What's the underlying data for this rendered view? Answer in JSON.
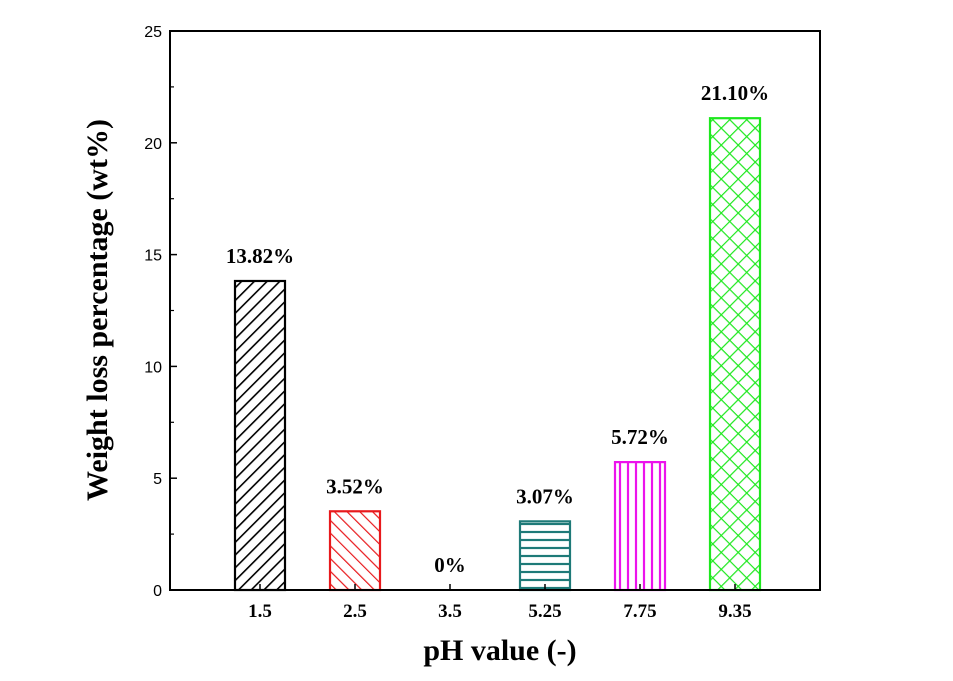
{
  "chart_data": {
    "type": "bar",
    "title": "",
    "xlabel": "pH value (-)",
    "ylabel": "Weight loss percentage (wt%)",
    "categories": [
      "1.5",
      "2.5",
      "3.5",
      "5.25",
      "7.75",
      "9.35"
    ],
    "values": [
      13.82,
      3.52,
      0,
      3.07,
      5.72,
      21.1
    ],
    "data_labels": [
      "13.82%",
      "3.52%",
      "0%",
      "3.07%",
      "5.72%",
      "21.10%"
    ],
    "colors": [
      "#000000",
      "#e8191c",
      "#1e7a78",
      "#1e7a78",
      "#ec14ec",
      "#1ee81e"
    ],
    "patterns": [
      "diag-right",
      "diag-left",
      "none",
      "horizontal",
      "vertical",
      "crosshatch"
    ],
    "ylim": [
      0,
      25
    ],
    "yticks": [
      0,
      5,
      10,
      15,
      20,
      25
    ],
    "grid": false,
    "legend": "none"
  }
}
